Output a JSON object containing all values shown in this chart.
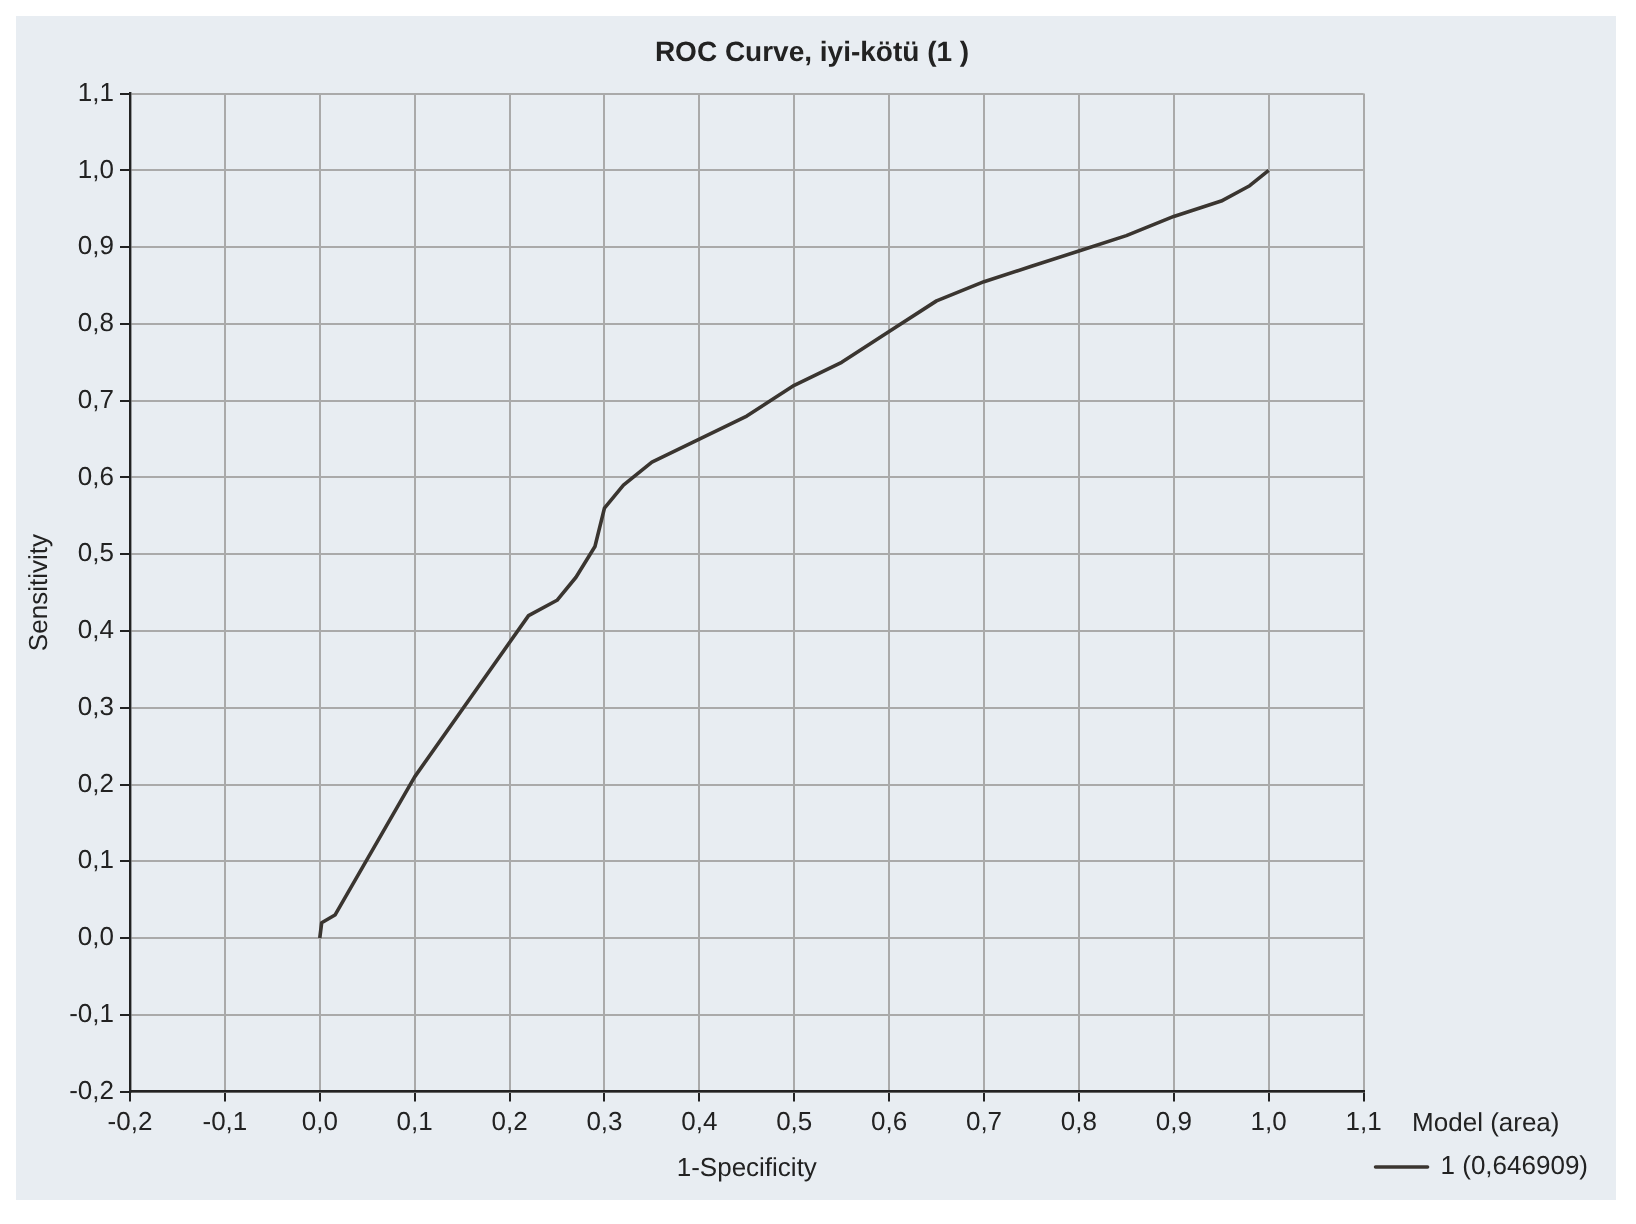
{
  "chart_data": {
    "type": "line",
    "title": "ROC Curve, iyi-kötü (1 )",
    "xlabel": "1-Specificity",
    "ylabel": "Sensitivity",
    "legend_title": "Model (area)",
    "xlim": [
      -0.2,
      1.1
    ],
    "ylim": [
      -0.2,
      1.1
    ],
    "xticks": [
      {
        "value": -0.2,
        "label": "-0,2"
      },
      {
        "value": -0.1,
        "label": "-0,1"
      },
      {
        "value": 0,
        "label": "0,0"
      },
      {
        "value": 0.1,
        "label": "0,1"
      },
      {
        "value": 0.2,
        "label": "0,2"
      },
      {
        "value": 0.3,
        "label": "0,3"
      },
      {
        "value": 0.4,
        "label": "0,4"
      },
      {
        "value": 0.5,
        "label": "0,5"
      },
      {
        "value": 0.6,
        "label": "0,6"
      },
      {
        "value": 0.7,
        "label": "0,7"
      },
      {
        "value": 0.8,
        "label": "0,8"
      },
      {
        "value": 0.9,
        "label": "0,9"
      },
      {
        "value": 1,
        "label": "1,0"
      },
      {
        "value": 1.1,
        "label": "1,1"
      }
    ],
    "yticks": [
      {
        "value": -0.2,
        "label": "-0,2"
      },
      {
        "value": -0.1,
        "label": "-0,1"
      },
      {
        "value": 0,
        "label": "0,0"
      },
      {
        "value": 0.1,
        "label": "0,1"
      },
      {
        "value": 0.2,
        "label": "0,2"
      },
      {
        "value": 0.3,
        "label": "0,3"
      },
      {
        "value": 0.4,
        "label": "0,4"
      },
      {
        "value": 0.5,
        "label": "0,5"
      },
      {
        "value": 0.6,
        "label": "0,6"
      },
      {
        "value": 0.7,
        "label": "0,7"
      },
      {
        "value": 0.8,
        "label": "0,8"
      },
      {
        "value": 0.9,
        "label": "0,9"
      },
      {
        "value": 1,
        "label": "1,0"
      },
      {
        "value": 1.1,
        "label": "1,1"
      }
    ],
    "grid": true,
    "legend": "bottom right",
    "marker": "none",
    "line_style": "solid",
    "series": [
      {
        "name": "1 (0,646909)",
        "color": "#3a3530",
        "x": [
          0,
          0.002,
          0.016,
          0.1,
          0.22,
          0.25,
          0.27,
          0.29,
          0.3,
          0.32,
          0.35,
          0.4,
          0.45,
          0.5,
          0.55,
          0.6,
          0.65,
          0.7,
          0.75,
          0.8,
          0.85,
          0.9,
          0.95,
          0.98,
          1
        ],
        "values": [
          0,
          0.02,
          0.03,
          0.21,
          0.42,
          0.44,
          0.47,
          0.51,
          0.56,
          0.59,
          0.62,
          0.65,
          0.68,
          0.72,
          0.75,
          0.79,
          0.83,
          0.855,
          0.875,
          0.895,
          0.915,
          0.94,
          0.96,
          0.98,
          1
        ]
      }
    ]
  }
}
